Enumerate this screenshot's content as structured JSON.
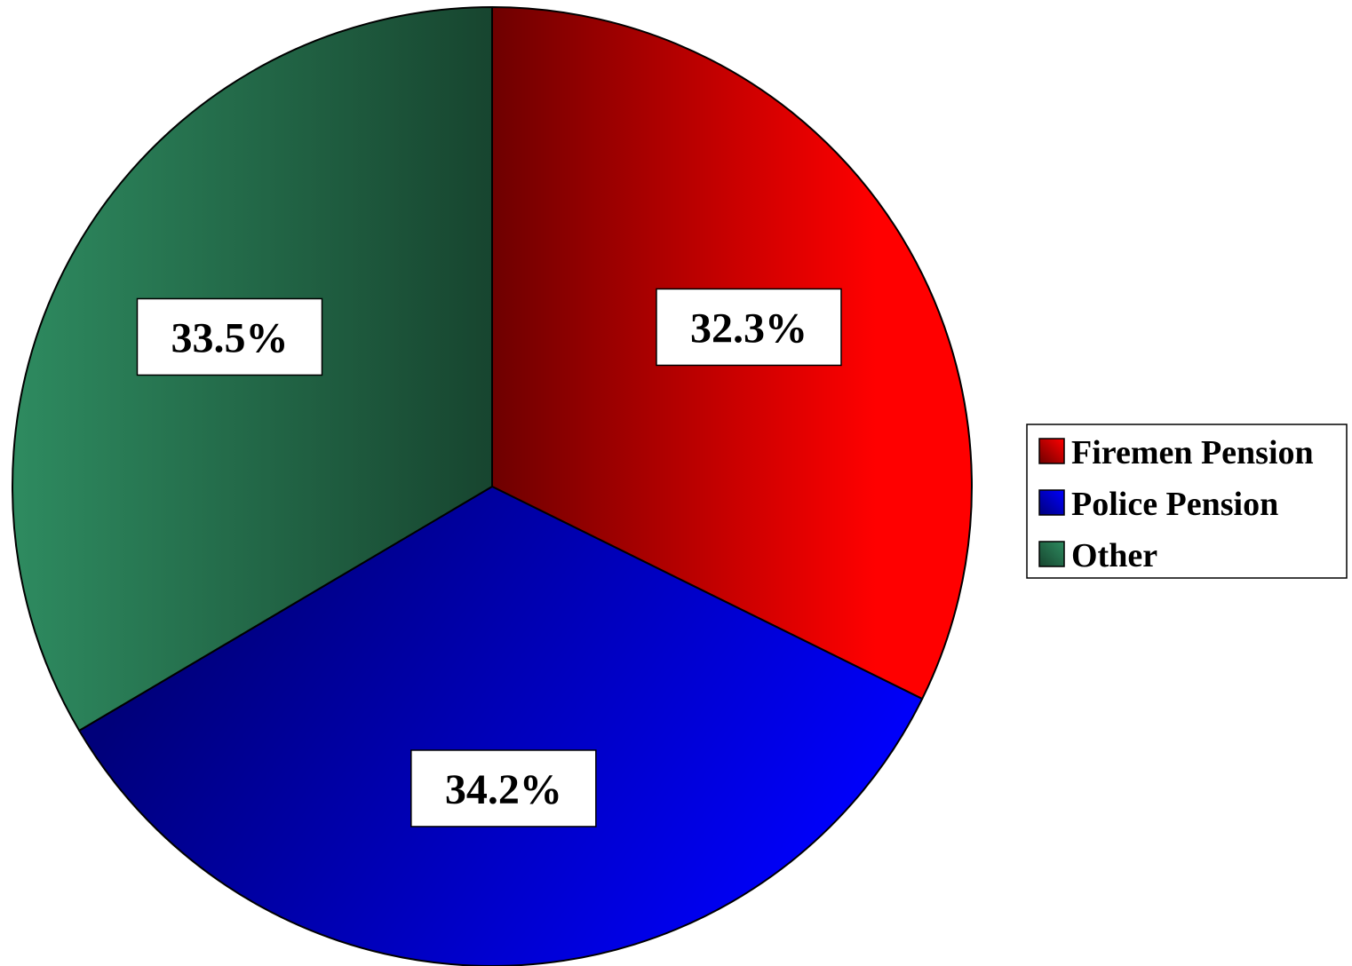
{
  "chart_data": {
    "type": "pie",
    "slices": [
      {
        "name": "Firemen Pension",
        "value": 32.3,
        "label": "32.3%",
        "color_light": "#ff0000",
        "color_dark": "#6e0000"
      },
      {
        "name": "Police Pension",
        "value": 34.2,
        "label": "34.2%",
        "color_light": "#0000ff",
        "color_dark": "#00007a"
      },
      {
        "name": "Other",
        "value": 33.5,
        "label": "33.5%",
        "color_light": "#2e8b60",
        "color_dark": "#17452f"
      }
    ],
    "start_angle": "12 o'clock",
    "direction": "clockwise",
    "legend_position": "right"
  }
}
